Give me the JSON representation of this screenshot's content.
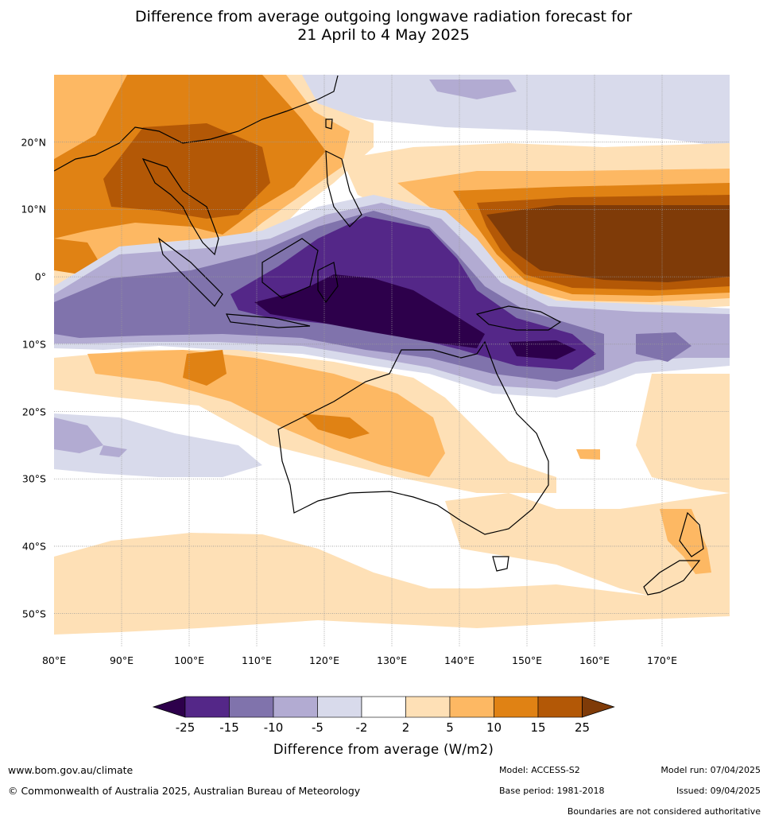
{
  "title": {
    "line1": "Difference from average outgoing longwave radiation forecast for",
    "line2": "21 April to 4 May 2025"
  },
  "map": {
    "lon_ticks": [
      "80°E",
      "90°E",
      "100°E",
      "110°E",
      "120°E",
      "130°E",
      "140°E",
      "150°E",
      "160°E",
      "170°E"
    ],
    "lat_ticks": [
      "20°N",
      "10°N",
      "0°",
      "10°S",
      "20°S",
      "30°S",
      "40°S",
      "50°S"
    ],
    "lon_range": [
      80,
      180
    ],
    "lat_range": [
      -55,
      30
    ],
    "gridlines": true
  },
  "colorbar": {
    "label": "Difference from average (W/m2)",
    "ticks": [
      "-25",
      "-15",
      "-10",
      "-5",
      "-2",
      "2",
      "5",
      "10",
      "15",
      "25"
    ],
    "colors": {
      "below_-25": "#2d004b",
      "-25_-15": "#542788",
      "-15_-10": "#8073ac",
      "-10_-5": "#b2abd2",
      "-5_-2": "#d8daeb",
      "-2_2": "#ffffff",
      "2_5": "#fee0b6",
      "5_10": "#fdb863",
      "10_15": "#e08214",
      "15_25": "#b35806",
      "above_25": "#7f3b08"
    }
  },
  "footer": {
    "website": "www.bom.gov.au/climate",
    "copyright": "© Commonwealth of Australia 2025, Australian Bureau of Meteorology",
    "model": "Model: ACCESS-S2",
    "base_period": "Base period: 1981-2018",
    "model_run": "Model run: 07/04/2025",
    "issued": "Issued: 09/04/2025",
    "boundaries": "Boundaries are not considered authoritative"
  }
}
